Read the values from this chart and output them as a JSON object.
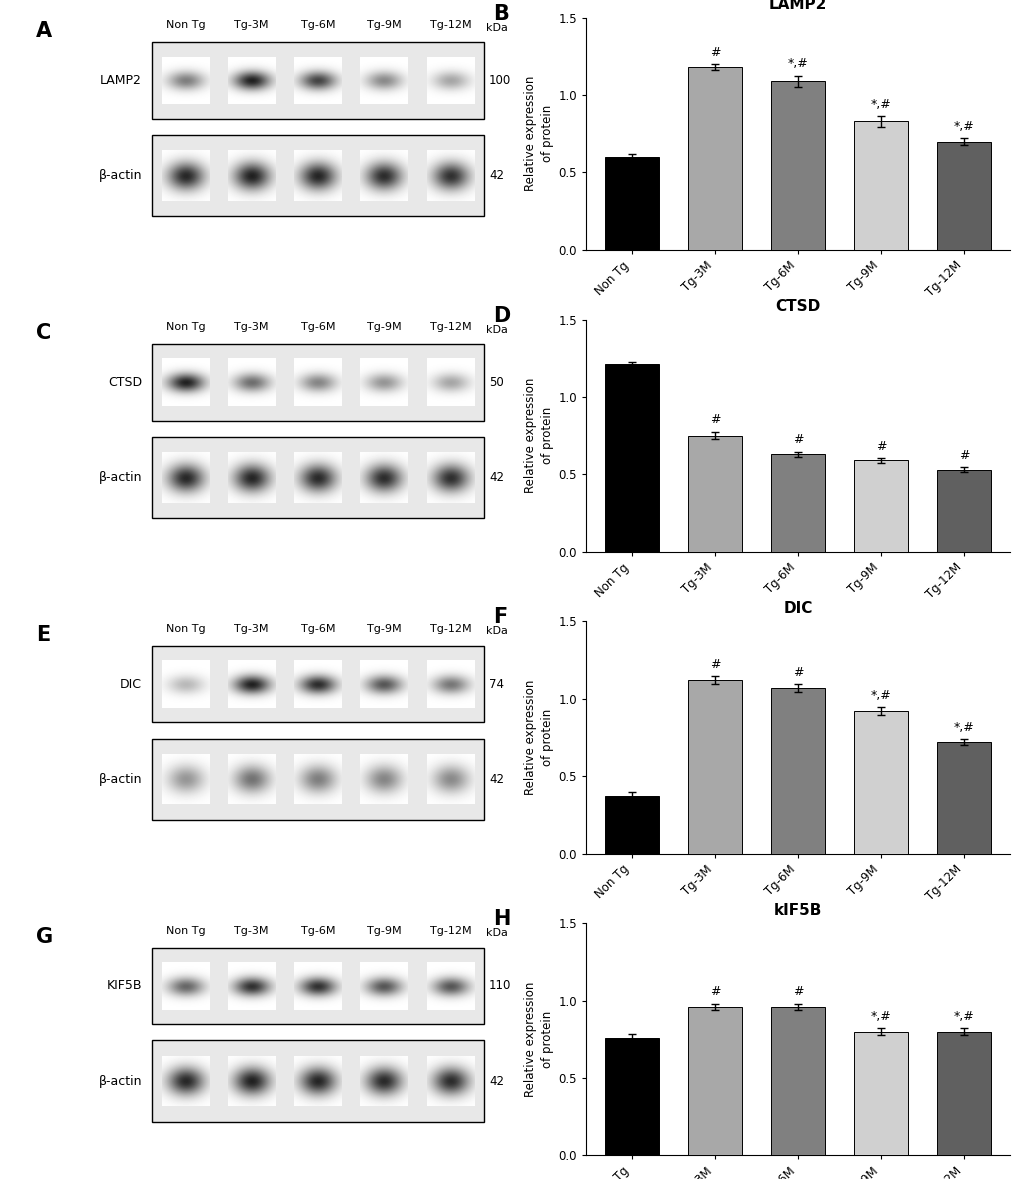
{
  "categories": [
    "Non Tg",
    "Tg-3M",
    "Tg-6M",
    "Tg-9M",
    "Tg-12M"
  ],
  "lamp2": {
    "title": "LAMP2",
    "values": [
      0.6,
      1.18,
      1.09,
      0.83,
      0.7
    ],
    "errors": [
      0.02,
      0.02,
      0.035,
      0.035,
      0.02
    ],
    "annotations": [
      "",
      "#",
      "*,#",
      "*,#",
      "*,#"
    ]
  },
  "ctsd": {
    "title": "CTSD",
    "values": [
      1.21,
      0.75,
      0.63,
      0.59,
      0.53
    ],
    "errors": [
      0.015,
      0.025,
      0.015,
      0.015,
      0.015
    ],
    "annotations": [
      "",
      "#",
      "#",
      "#",
      "#"
    ]
  },
  "dic": {
    "title": "DIC",
    "values": [
      0.37,
      1.12,
      1.07,
      0.92,
      0.72
    ],
    "errors": [
      0.03,
      0.025,
      0.025,
      0.025,
      0.02
    ],
    "annotations": [
      "",
      "#",
      "#",
      "*,#",
      "*,#"
    ]
  },
  "kif5b": {
    "title": "kIF5B",
    "values": [
      0.76,
      0.96,
      0.96,
      0.8,
      0.8
    ],
    "errors": [
      0.025,
      0.02,
      0.02,
      0.02,
      0.02
    ],
    "annotations": [
      "",
      "#",
      "#",
      "*,#",
      "*,#"
    ]
  },
  "blot_panels": [
    {
      "letter": "A",
      "protein": "LAMP2",
      "kda_protein": "100",
      "kda_actin": "42",
      "protein_intensities": [
        0.55,
        0.95,
        0.8,
        0.5,
        0.38
      ],
      "actin_intensities": [
        0.92,
        0.95,
        0.93,
        0.9,
        0.88
      ]
    },
    {
      "letter": "C",
      "protein": "CTSD",
      "kda_protein": "50",
      "kda_actin": "42",
      "protein_intensities": [
        0.95,
        0.62,
        0.52,
        0.45,
        0.38
      ],
      "actin_intensities": [
        0.92,
        0.93,
        0.91,
        0.9,
        0.89
      ]
    },
    {
      "letter": "E",
      "protein": "DIC",
      "kda_protein": "74",
      "kda_actin": "42",
      "protein_intensities": [
        0.3,
        0.95,
        0.9,
        0.72,
        0.58
      ],
      "actin_intensities": [
        0.45,
        0.6,
        0.55,
        0.52,
        0.5
      ]
    },
    {
      "letter": "G",
      "protein": "KIF5B",
      "kda_protein": "110",
      "kda_actin": "42",
      "protein_intensities": [
        0.65,
        0.88,
        0.88,
        0.72,
        0.72
      ],
      "actin_intensities": [
        0.92,
        0.95,
        0.93,
        0.91,
        0.9
      ]
    }
  ],
  "col_labels": [
    "Non Tg",
    "Tg-3M",
    "Tg-6M",
    "Tg-9M",
    "Tg-12M"
  ],
  "bar_colors": [
    "#000000",
    "#a8a8a8",
    "#808080",
    "#d0d0d0",
    "#606060"
  ],
  "ylabel": "Relative expression\nof protein",
  "ylim": [
    0.0,
    1.5
  ],
  "yticks": [
    0.0,
    0.5,
    1.0,
    1.5
  ],
  "bar_width": 0.65,
  "panel_keys": [
    "lamp2",
    "ctsd",
    "dic",
    "kif5b"
  ],
  "bar_letters": [
    "B",
    "D",
    "F",
    "H"
  ]
}
